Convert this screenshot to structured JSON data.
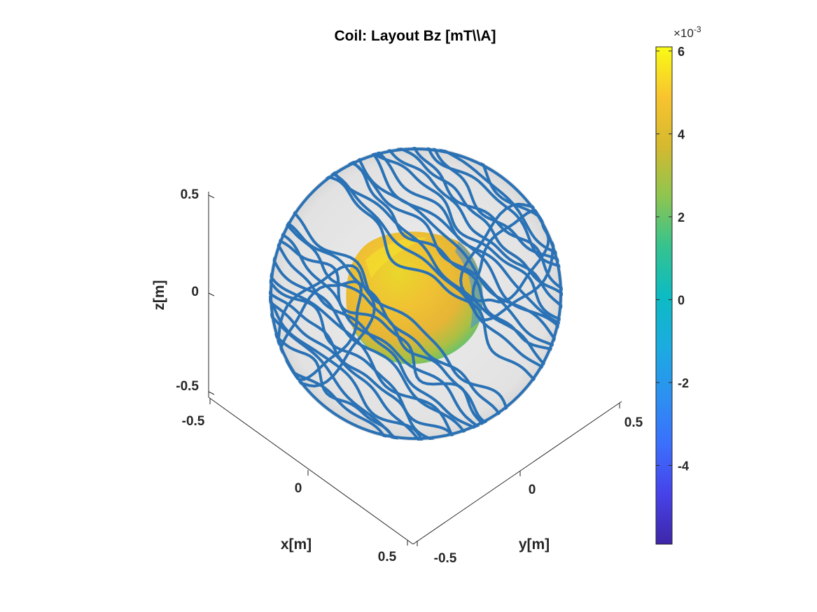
{
  "chart_data": {
    "type": "surface3d",
    "title": "Coil: Layout Bz [mT\\\\A]",
    "xlabel": "x[m]",
    "ylabel": "y[m]",
    "zlabel": "z[m]",
    "x_ticks": [
      "-0.5",
      "0",
      "0.5"
    ],
    "y_ticks": [
      "-0.5",
      "0",
      "0.5"
    ],
    "z_ticks": [
      "0.5",
      "0",
      "-0.5"
    ],
    "xlim": [
      -0.5,
      0.5
    ],
    "ylim": [
      -0.5,
      0.5
    ],
    "zlim": [
      -0.5,
      0.5
    ],
    "colorbar": {
      "exponent_base": "×10",
      "exponent_power": "-3",
      "ticks": [
        "6",
        "4",
        "2",
        "0",
        "-2",
        "-4"
      ],
      "tick_values": [
        6,
        4,
        2,
        0,
        -2,
        -4
      ],
      "range": [
        -5.9,
        6.1
      ],
      "colormap": "parula"
    },
    "series": [
      {
        "kind": "coil_windings",
        "color": "#2a72b5"
      },
      {
        "kind": "sphere_surface",
        "color": "#e6e6e6"
      },
      {
        "kind": "field_sphere_bz",
        "value_range": [
          -5.9,
          6.1
        ]
      }
    ]
  },
  "colors": {
    "winding": "#2a72b5",
    "sphere": "#e8e8e8",
    "axis": "#262626"
  }
}
